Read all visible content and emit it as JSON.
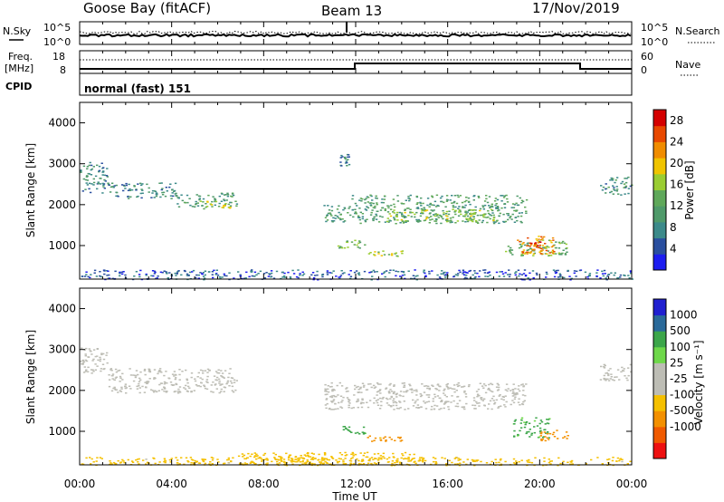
{
  "header": {
    "radar": "Goose Bay (fitACF)",
    "beam": "Beam 13",
    "date": "17/Nov/2019"
  },
  "panels": {
    "nsky_label": "N.Sky",
    "nsearch_label": "N.Search",
    "freq_label_1": "Freq.",
    "freq_label_2": "[MHz]",
    "nave_label": "Nave",
    "cpid_label": "CPID",
    "cpid_value": "normal (fast) 151",
    "nsky_ticks": [
      "10^5",
      "10^0"
    ],
    "freq_ticks": [
      "18",
      "8"
    ],
    "nave_ticks": [
      "60",
      "0"
    ]
  },
  "colors": {
    "power_scale": [
      "#1d1df0",
      "#2a4f9f",
      "#3c8a8a",
      "#4f9a6a",
      "#5fa85a",
      "#9acd32",
      "#f0c400",
      "#f08c00",
      "#e84800",
      "#d40000"
    ],
    "velocity_scale": [
      "#ee1111",
      "#f05a00",
      "#f39000",
      "#f5c000",
      "#bdbdb5",
      "#bdbdb5",
      "#6ed84a",
      "#3ca64a",
      "#2a6a9a",
      "#2020d0"
    ],
    "ground_scatter": "#bdbdb5"
  },
  "chart_data": [
    {
      "type": "heatmap",
      "name": "power",
      "ylabel": "Slant Range [km]",
      "colorbar_label": "Power [dB]",
      "colorbar_ticks": [
        "4",
        "8",
        "12",
        "16",
        "20",
        "24",
        "28"
      ],
      "y_ticks": [
        "1000",
        "2000",
        "3000",
        "4000"
      ],
      "ylim": [
        180,
        4500
      ],
      "xlim": [
        0,
        24
      ],
      "regions": [
        {
          "t0": 0.0,
          "t1": 1.2,
          "r0": 2300,
          "r1": 3050,
          "p": 9
        },
        {
          "t0": 1.2,
          "t1": 4.2,
          "r0": 2150,
          "r1": 2550,
          "p": 9
        },
        {
          "t0": 4.2,
          "t1": 6.8,
          "r0": 1950,
          "r1": 2300,
          "p": 11
        },
        {
          "t0": 5.2,
          "t1": 6.6,
          "r0": 1900,
          "r1": 2100,
          "p": 17
        },
        {
          "t0": 10.6,
          "t1": 11.8,
          "r0": 1550,
          "r1": 2000,
          "p": 12
        },
        {
          "t0": 11.8,
          "t1": 19.4,
          "r0": 1550,
          "r1": 2250,
          "p": 12
        },
        {
          "t0": 13.2,
          "t1": 18.2,
          "r0": 1600,
          "r1": 1900,
          "p": 16
        },
        {
          "t0": 11.2,
          "t1": 12.4,
          "r0": 950,
          "r1": 1150,
          "p": 15
        },
        {
          "t0": 12.4,
          "t1": 14.0,
          "r0": 750,
          "r1": 900,
          "p": 17
        },
        {
          "t0": 18.4,
          "t1": 21.2,
          "r0": 760,
          "r1": 1150,
          "p": 14
        },
        {
          "t0": 19.0,
          "t1": 20.6,
          "r0": 800,
          "r1": 1250,
          "p": 23
        },
        {
          "t0": 19.4,
          "t1": 20.2,
          "r0": 900,
          "r1": 1100,
          "p": 27
        },
        {
          "t0": 22.6,
          "t1": 24.0,
          "r0": 2250,
          "r1": 2700,
          "p": 10
        },
        {
          "t0": 11.3,
          "t1": 11.7,
          "r0": 2950,
          "r1": 3250,
          "p": 8
        },
        {
          "t0": 0.0,
          "t1": 24.0,
          "r0": 180,
          "r1": 420,
          "p": 6
        }
      ]
    },
    {
      "type": "heatmap",
      "name": "velocity",
      "ylabel": "Slant Range [km]",
      "xlabel": "Time UT",
      "colorbar_label": "Velocity [m s⁻¹]",
      "colorbar_ticks": [
        "-1000",
        "-500",
        "-100",
        "-25",
        "25",
        "100",
        "500",
        "1000"
      ],
      "x_ticks": [
        "00:00",
        "04:00",
        "08:00",
        "12:00",
        "16:00",
        "20:00",
        "00:00"
      ],
      "y_ticks": [
        "1000",
        "2000",
        "3000",
        "4000"
      ],
      "ylim": [
        180,
        4500
      ],
      "xlim": [
        0,
        24
      ],
      "regions": [
        {
          "t0": 0.0,
          "t1": 1.2,
          "r0": 2400,
          "r1": 3050,
          "v": 0
        },
        {
          "t0": 1.2,
          "t1": 6.8,
          "r0": 1950,
          "r1": 2550,
          "v": 0
        },
        {
          "t0": 10.6,
          "t1": 19.4,
          "r0": 1550,
          "r1": 2200,
          "v": 0
        },
        {
          "t0": 11.2,
          "t1": 12.4,
          "r0": 950,
          "r1": 1150,
          "v": 150
        },
        {
          "t0": 12.4,
          "t1": 14.0,
          "r0": 760,
          "r1": 900,
          "v": -150
        },
        {
          "t0": 18.8,
          "t1": 20.4,
          "r0": 850,
          "r1": 1350,
          "v": 150
        },
        {
          "t0": 20.0,
          "t1": 21.2,
          "r0": 780,
          "r1": 1050,
          "v": -200
        },
        {
          "t0": 22.6,
          "t1": 24.0,
          "r0": 2250,
          "r1": 2650,
          "v": 0
        },
        {
          "t0": 6.8,
          "t1": 15.0,
          "r0": 180,
          "r1": 500,
          "v": -60
        },
        {
          "t0": 0.0,
          "t1": 24.0,
          "r0": 180,
          "r1": 380,
          "v": -40
        }
      ]
    }
  ]
}
